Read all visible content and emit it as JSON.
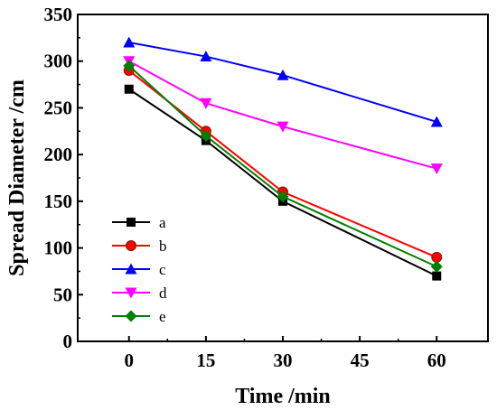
{
  "chart_data": {
    "type": "line",
    "title": "",
    "xlabel": "Time /min",
    "ylabel": "Spread Diameter /cm",
    "xlim": [
      -10,
      70
    ],
    "ylim": [
      0,
      350
    ],
    "xticks": [
      0,
      15,
      30,
      45,
      60
    ],
    "yticks": [
      0,
      50,
      100,
      150,
      200,
      250,
      300,
      350
    ],
    "x": [
      0,
      15,
      30,
      60
    ],
    "grid": false,
    "legend_position": "lower-left",
    "series": [
      {
        "name": "a",
        "values": [
          270,
          215,
          150,
          70
        ],
        "color": "#000000",
        "marker": "square"
      },
      {
        "name": "b",
        "values": [
          290,
          225,
          160,
          90
        ],
        "color": "#ff0000",
        "marker": "circle"
      },
      {
        "name": "c",
        "values": [
          320,
          305,
          285,
          235
        ],
        "color": "#0000ff",
        "marker": "triangle-up"
      },
      {
        "name": "d",
        "values": [
          300,
          255,
          230,
          185
        ],
        "color": "#ff00ff",
        "marker": "triangle-down"
      },
      {
        "name": "e",
        "values": [
          295,
          220,
          155,
          80
        ],
        "color": "#008000",
        "marker": "diamond"
      }
    ]
  }
}
